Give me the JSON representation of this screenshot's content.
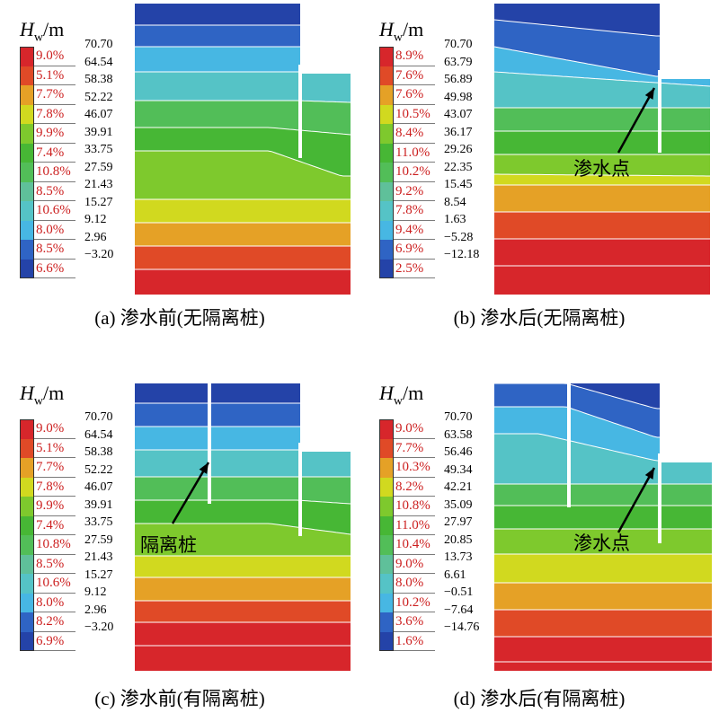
{
  "colors": [
    "#d7262b",
    "#e04a27",
    "#e5a126",
    "#d1d91f",
    "#7ec92d",
    "#47b735",
    "#52be58",
    "#5fc09a",
    "#55c3c6",
    "#47b7e3",
    "#2f64c4",
    "#2443a8"
  ],
  "panels": [
    {
      "id": "a",
      "hw_letter": "H",
      "hw_sub": "w",
      "hw_unit": "/m",
      "caption": "(a) 渗水前(无隔离桩)",
      "legend_pcts": [
        "9.0%",
        "5.1%",
        "7.7%",
        "7.8%",
        "9.9%",
        "7.4%",
        "10.8%",
        "8.5%",
        "10.6%",
        "8.0%",
        "8.5%",
        "6.6%"
      ],
      "ticks": [
        "70.70",
        "64.54",
        "58.38",
        "52.22",
        "46.07",
        "39.91",
        "33.75",
        "27.59",
        "21.43",
        "15.27",
        "9.12",
        "2.96",
        "-3.20"
      ],
      "annotation": ""
    },
    {
      "id": "b",
      "hw_letter": "H",
      "hw_sub": "w",
      "hw_unit": "/m",
      "caption": "(b) 渗水后(无隔离桩)",
      "legend_pcts": [
        "8.9%",
        "7.6%",
        "7.6%",
        "10.5%",
        "8.4%",
        "11.0%",
        "10.2%",
        "9.2%",
        "7.8%",
        "9.4%",
        "6.9%",
        "2.5%"
      ],
      "ticks": [
        "70.70",
        "63.79",
        "56.89",
        "49.98",
        "43.07",
        "36.17",
        "29.26",
        "22.35",
        "15.45",
        "8.54",
        "1.63",
        "-5.28",
        "-12.18"
      ],
      "annotation": "渗水点"
    },
    {
      "id": "c",
      "hw_letter": "H",
      "hw_sub": "w",
      "hw_unit": "/m",
      "caption": "(c) 渗水前(有隔离桩)",
      "legend_pcts": [
        "9.0%",
        "5.1%",
        "7.7%",
        "7.8%",
        "9.9%",
        "7.4%",
        "10.8%",
        "8.5%",
        "10.6%",
        "8.0%",
        "8.2%",
        "6.9%"
      ],
      "ticks": [
        "70.70",
        "64.54",
        "58.38",
        "52.22",
        "46.07",
        "39.91",
        "33.75",
        "27.59",
        "21.43",
        "15.27",
        "9.12",
        "2.96",
        "-3.20"
      ],
      "annotation": "隔离桩"
    },
    {
      "id": "d",
      "hw_letter": "H",
      "hw_sub": "w",
      "hw_unit": "/m",
      "caption": "(d) 渗水后(有隔离桩)",
      "legend_pcts": [
        "9.0%",
        "7.7%",
        "10.3%",
        "8.2%",
        "10.8%",
        "11.0%",
        "10.4%",
        "9.0%",
        "8.0%",
        "10.2%",
        "3.6%",
        "1.6%"
      ],
      "ticks": [
        "70.70",
        "63.58",
        "56.46",
        "49.34",
        "42.21",
        "35.09",
        "27.97",
        "20.85",
        "13.73",
        "6.61",
        "-0.51",
        "-7.64",
        "-14.76"
      ],
      "annotation": "渗水点"
    }
  ]
}
